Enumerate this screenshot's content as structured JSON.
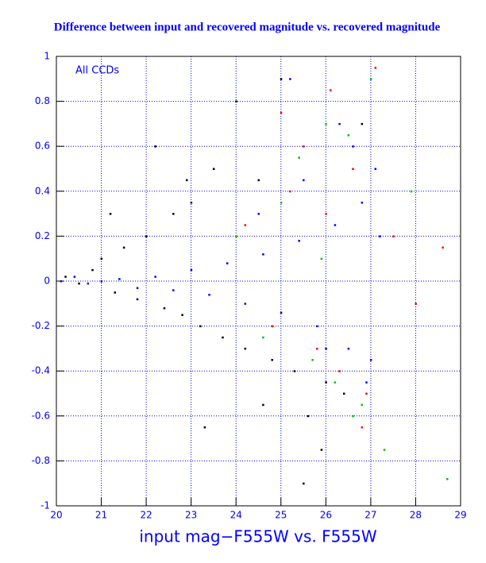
{
  "chart_data": {
    "type": "scatter",
    "title": "Difference between input and recovered magnitude vs. recovered magnitude",
    "x_label": "input mag−F555W vs. F555W",
    "annotation": "All CCDs",
    "xlim": [
      20,
      29
    ],
    "ylim": [
      -1,
      1
    ],
    "xticks": [
      20,
      21,
      22,
      23,
      24,
      25,
      26,
      27,
      28,
      29
    ],
    "yticks": [
      -1,
      -0.8,
      -0.6,
      -0.4,
      -0.2,
      0,
      0.2,
      0.4,
      0.6,
      0.8,
      1
    ],
    "grid": true,
    "series": [
      {
        "color": "#000000",
        "x": [
          20.2,
          20.5,
          20.8,
          21.0,
          21.3,
          21.5,
          21.8,
          22.0,
          22.2,
          22.4,
          22.6,
          22.8,
          23.0,
          23.2,
          23.5,
          23.7,
          24.0,
          24.2,
          24.5,
          24.8,
          25.0,
          25.3,
          25.6,
          26.0,
          26.4,
          26.8,
          25.5,
          23.3,
          21.2,
          22.9,
          24.6,
          25.9
        ],
        "values": [
          0.02,
          -0.01,
          0.05,
          0.1,
          -0.05,
          0.15,
          -0.08,
          0.2,
          0.6,
          -0.12,
          0.3,
          -0.15,
          0.35,
          -0.2,
          0.5,
          -0.25,
          0.8,
          -0.3,
          0.45,
          -0.35,
          0.9,
          -0.4,
          -0.6,
          -0.45,
          -0.5,
          0.7,
          -0.9,
          -0.65,
          0.3,
          0.45,
          -0.55,
          -0.75
        ]
      },
      {
        "color": "#ff0000",
        "x": [
          24.2,
          24.8,
          25.2,
          25.5,
          25.8,
          26.1,
          26.3,
          26.6,
          26.9,
          27.1,
          27.5,
          28.0,
          28.6,
          26.0,
          25.0,
          26.8
        ],
        "values": [
          0.25,
          -0.2,
          0.4,
          0.6,
          -0.3,
          0.85,
          -0.4,
          0.5,
          -0.5,
          0.95,
          0.2,
          -0.1,
          0.15,
          0.3,
          0.75,
          -0.65
        ]
      },
      {
        "color": "#00c000",
        "x": [
          24.0,
          24.6,
          25.0,
          25.4,
          25.7,
          26.0,
          26.2,
          26.5,
          26.8,
          27.0,
          27.3,
          27.9,
          28.7,
          25.9,
          26.6
        ],
        "values": [
          0.2,
          -0.25,
          0.35,
          0.55,
          -0.35,
          0.7,
          -0.45,
          0.65,
          -0.55,
          0.9,
          -0.75,
          0.4,
          -0.88,
          0.1,
          -0.6
        ]
      },
      {
        "color": "#0000ff",
        "x": [
          20.1,
          20.4,
          20.7,
          21.0,
          21.4,
          21.8,
          22.2,
          22.6,
          23.0,
          23.4,
          23.8,
          24.2,
          24.6,
          25.0,
          25.4,
          25.8,
          26.2,
          26.5,
          26.8,
          27.0,
          24.5,
          25.5,
          26.0,
          26.6,
          27.1,
          25.2,
          26.3,
          26.9,
          27.2
        ],
        "values": [
          0.0,
          0.02,
          -0.01,
          0.0,
          0.01,
          -0.03,
          0.02,
          -0.04,
          0.05,
          -0.06,
          0.08,
          -0.1,
          0.12,
          -0.14,
          0.18,
          -0.2,
          0.25,
          -0.3,
          0.35,
          -0.35,
          0.3,
          0.45,
          -0.3,
          0.6,
          0.5,
          0.9,
          0.7,
          -0.45,
          0.2
        ]
      }
    ]
  }
}
